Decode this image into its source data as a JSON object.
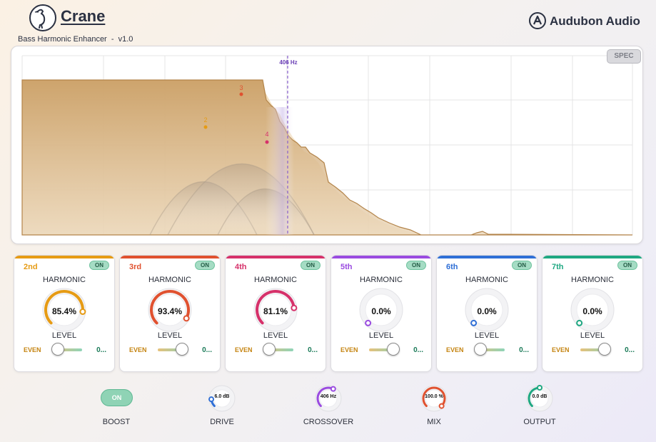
{
  "header": {
    "brand": "Crane",
    "subtitle": "Bass Harmonic Enhancer  -  v1.0",
    "company": "Audubon Audio",
    "logo_icon": "crane-bird-icon",
    "company_icon": "audubon-a-icon"
  },
  "analyzer": {
    "crossover_label": "406 Hz",
    "spec_label": "SPEC",
    "markers": [
      {
        "label": "2",
        "color": "#e69b14"
      },
      {
        "label": "3",
        "color": "#e0512f"
      },
      {
        "label": "4",
        "color": "#d6316a"
      }
    ]
  },
  "bands": [
    {
      "label": "2nd",
      "title": "HARMONIC",
      "value": "85.4%",
      "level_fraction": 0.854,
      "level_label": "LEVEL",
      "even_label": "EVEN",
      "odd_label": "0...",
      "on_label": "ON",
      "color": "#e69b14",
      "even_odd": 0.2
    },
    {
      "label": "3rd",
      "title": "HARMONIC",
      "value": "93.4%",
      "level_fraction": 0.934,
      "level_label": "LEVEL",
      "even_label": "EVEN",
      "odd_label": "0...",
      "on_label": "ON",
      "color": "#e0512f",
      "even_odd": 0.8
    },
    {
      "label": "4th",
      "title": "HARMONIC",
      "value": "81.1%",
      "level_fraction": 0.811,
      "level_label": "LEVEL",
      "even_label": "EVEN",
      "odd_label": "0...",
      "on_label": "ON",
      "color": "#d6316a",
      "even_odd": 0.2
    },
    {
      "label": "5th",
      "title": "HARMONIC",
      "value": "0.0%",
      "level_fraction": 0.0,
      "level_label": "LEVEL",
      "even_label": "EVEN",
      "odd_label": "0...",
      "on_label": "ON",
      "color": "#9a4be0",
      "even_odd": 0.8
    },
    {
      "label": "6th",
      "title": "HARMONIC",
      "value": "0.0%",
      "level_fraction": 0.0,
      "level_label": "LEVEL",
      "even_label": "EVEN",
      "odd_label": "0...",
      "on_label": "ON",
      "color": "#2f6fd6",
      "even_odd": 0.2
    },
    {
      "label": "7th",
      "title": "HARMONIC",
      "value": "0.0%",
      "level_fraction": 0.0,
      "level_label": "LEVEL",
      "even_label": "EVEN",
      "odd_label": "0...",
      "on_label": "ON",
      "color": "#1fa882",
      "even_odd": 0.8
    }
  ],
  "controls": {
    "boost": {
      "label": "BOOST",
      "state": "ON"
    },
    "drive": {
      "label": "DRIVE",
      "value": "6.0 dB",
      "color": "#2f6fd6",
      "level_fraction": 0.15
    },
    "crossover": {
      "label": "CROSSOVER",
      "value": "406 Hz",
      "color": "#9a4be0",
      "level_fraction": 0.6
    },
    "mix": {
      "label": "MIX",
      "value": "100.0 %",
      "color": "#e0512f",
      "level_fraction": 1.0
    },
    "output": {
      "label": "OUTPUT",
      "value": "0.0 dB",
      "color": "#1fa882",
      "level_fraction": 0.5
    }
  }
}
